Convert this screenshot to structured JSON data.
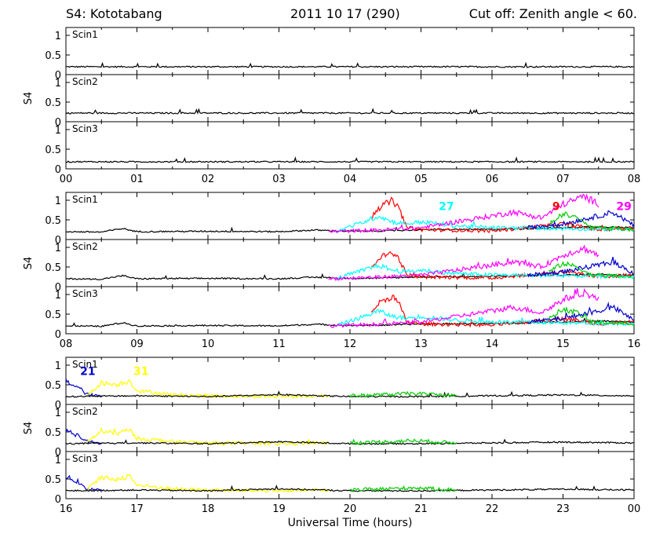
{
  "header": {
    "station": "S4: Kototabang",
    "date": "2011 10 17 (290)",
    "cutoff": "Cut off: Zenith angle < 60."
  },
  "chart_data": {
    "type": "line",
    "xlabel": "Universal Time (hours)",
    "ylabel": "S4",
    "ylim": [
      0,
      1.2
    ],
    "yticks": [
      "0",
      "0.5",
      "1"
    ],
    "panel_labels": [
      "Scin1",
      "Scin2",
      "Scin3"
    ],
    "rows": [
      {
        "xlim": [
          0,
          8
        ],
        "xticks": [
          "00",
          "01",
          "02",
          "03",
          "04",
          "05",
          "06",
          "07",
          "08"
        ],
        "series": [
          {
            "color": "#000000",
            "baseline": [
              0.2,
              0.22,
              0.18
            ],
            "x": [
              0,
              8
            ]
          }
        ],
        "prns": []
      },
      {
        "xlim": [
          8,
          16
        ],
        "xticks": [
          "08",
          "09",
          "10",
          "11",
          "12",
          "13",
          "14",
          "15",
          "16"
        ],
        "series": [
          {
            "color": "#000000",
            "x": [
              8.0,
              8.5,
              8.8,
              9.0,
              10.0,
              11.0,
              11.5,
              12.0,
              12.5,
              13.0,
              14.0,
              15.0,
              15.5,
              16.0
            ],
            "y": [
              0.2,
              0.19,
              0.28,
              0.2,
              0.21,
              0.2,
              0.24,
              0.21,
              0.22,
              0.25,
              0.26,
              0.3,
              0.33,
              0.3
            ]
          },
          {
            "color": "#ff0000",
            "x": [
              12.3,
              12.4,
              12.5,
              12.6,
              12.7,
              12.8,
              13.0,
              14.0,
              14.5,
              15.0,
              15.5,
              16.0
            ],
            "y": [
              0.55,
              0.8,
              0.9,
              1.0,
              0.75,
              0.3,
              0.25,
              0.22,
              0.3,
              0.4,
              0.25,
              0.3
            ]
          },
          {
            "color": "#00ffff",
            "x": [
              11.8,
              12.2,
              12.4,
              12.6,
              12.8,
              13.0,
              13.5,
              14.0,
              15.0,
              16.0
            ],
            "y": [
              0.2,
              0.45,
              0.6,
              0.45,
              0.4,
              0.45,
              0.35,
              0.3,
              0.28,
              0.25
            ]
          },
          {
            "color": "#ff00ff",
            "x": [
              11.7,
              12.5,
              13.0,
              13.5,
              14.0,
              14.3,
              14.7,
              15.0,
              15.3,
              15.5
            ],
            "y": [
              0.2,
              0.25,
              0.3,
              0.45,
              0.6,
              0.7,
              0.55,
              0.9,
              1.1,
              0.9
            ]
          },
          {
            "color": "#00cc00",
            "x": [
              14.8,
              15.0,
              15.2,
              15.4,
              16.0
            ],
            "y": [
              0.4,
              0.65,
              0.55,
              0.3,
              0.25
            ]
          },
          {
            "color": "#0000cc",
            "x": [
              14.5,
              15.0,
              15.5,
              15.7,
              16.0
            ],
            "y": [
              0.3,
              0.4,
              0.6,
              0.7,
              0.35
            ]
          }
        ],
        "prns": [
          {
            "label": "27",
            "color": "#00ffff",
            "x": 13.25,
            "y": 0.85
          },
          {
            "label": "9",
            "color": "#ff0000",
            "x": 14.85,
            "y": 0.85
          },
          {
            "label": "29",
            "color": "#ff00ff",
            "x": 15.75,
            "y": 0.85
          }
        ]
      },
      {
        "xlim": [
          16,
          24
        ],
        "xticks": [
          "16",
          "17",
          "18",
          "19",
          "20",
          "21",
          "22",
          "23",
          "00"
        ],
        "series": [
          {
            "color": "#0000cc",
            "x": [
              16.0,
              16.1,
              16.2,
              16.3,
              16.5
            ],
            "y": [
              0.6,
              0.5,
              0.4,
              0.25,
              0.2
            ]
          },
          {
            "color": "#ffff00",
            "x": [
              16.3,
              16.5,
              16.7,
              16.9,
              17.0,
              17.5,
              18.0,
              19.0,
              19.7
            ],
            "y": [
              0.25,
              0.55,
              0.5,
              0.6,
              0.35,
              0.25,
              0.22,
              0.2,
              0.22
            ]
          },
          {
            "color": "#000000",
            "x": [
              16.0,
              17.0,
              18.0,
              19.0,
              20.0,
              21.0,
              22.0,
              23.0,
              24.0
            ],
            "y": [
              0.2,
              0.22,
              0.2,
              0.25,
              0.2,
              0.2,
              0.22,
              0.24,
              0.22
            ]
          },
          {
            "color": "#00cc00",
            "x": [
              20.0,
              20.5,
              20.9,
              21.5
            ],
            "y": [
              0.22,
              0.25,
              0.28,
              0.22
            ]
          }
        ],
        "prns": [
          {
            "label": "21",
            "color": "#0000cc",
            "x": 16.2,
            "y": 0.85
          },
          {
            "label": "31",
            "color": "#ffff00",
            "x": 16.95,
            "y": 0.85
          }
        ]
      }
    ]
  }
}
